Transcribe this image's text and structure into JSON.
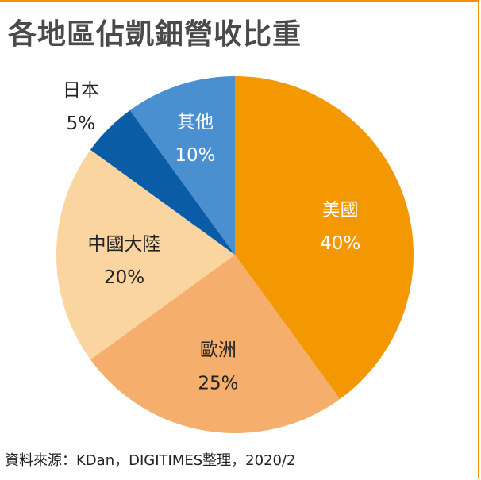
{
  "title": "各地區佔凱鈿營收比重",
  "source": "資料來源：KDan，DIGITIMES整理，2020/2",
  "chart_data": {
    "type": "pie",
    "categories": [
      "美國",
      "歐洲",
      "中國大陸",
      "日本",
      "其他"
    ],
    "values": [
      40,
      25,
      20,
      5,
      10
    ],
    "value_labels": [
      "40%",
      "25%",
      "20%",
      "5%",
      "10%"
    ],
    "colors": [
      "#f39800",
      "#f5ae6b",
      "#fbd5a0",
      "#0a5ca6",
      "#4a90d1"
    ],
    "label_colors": [
      "#ffffff",
      "#222222",
      "#222222",
      "#222222",
      "#ffffff"
    ],
    "start_angle_deg": 0,
    "direction": "clockwise"
  }
}
